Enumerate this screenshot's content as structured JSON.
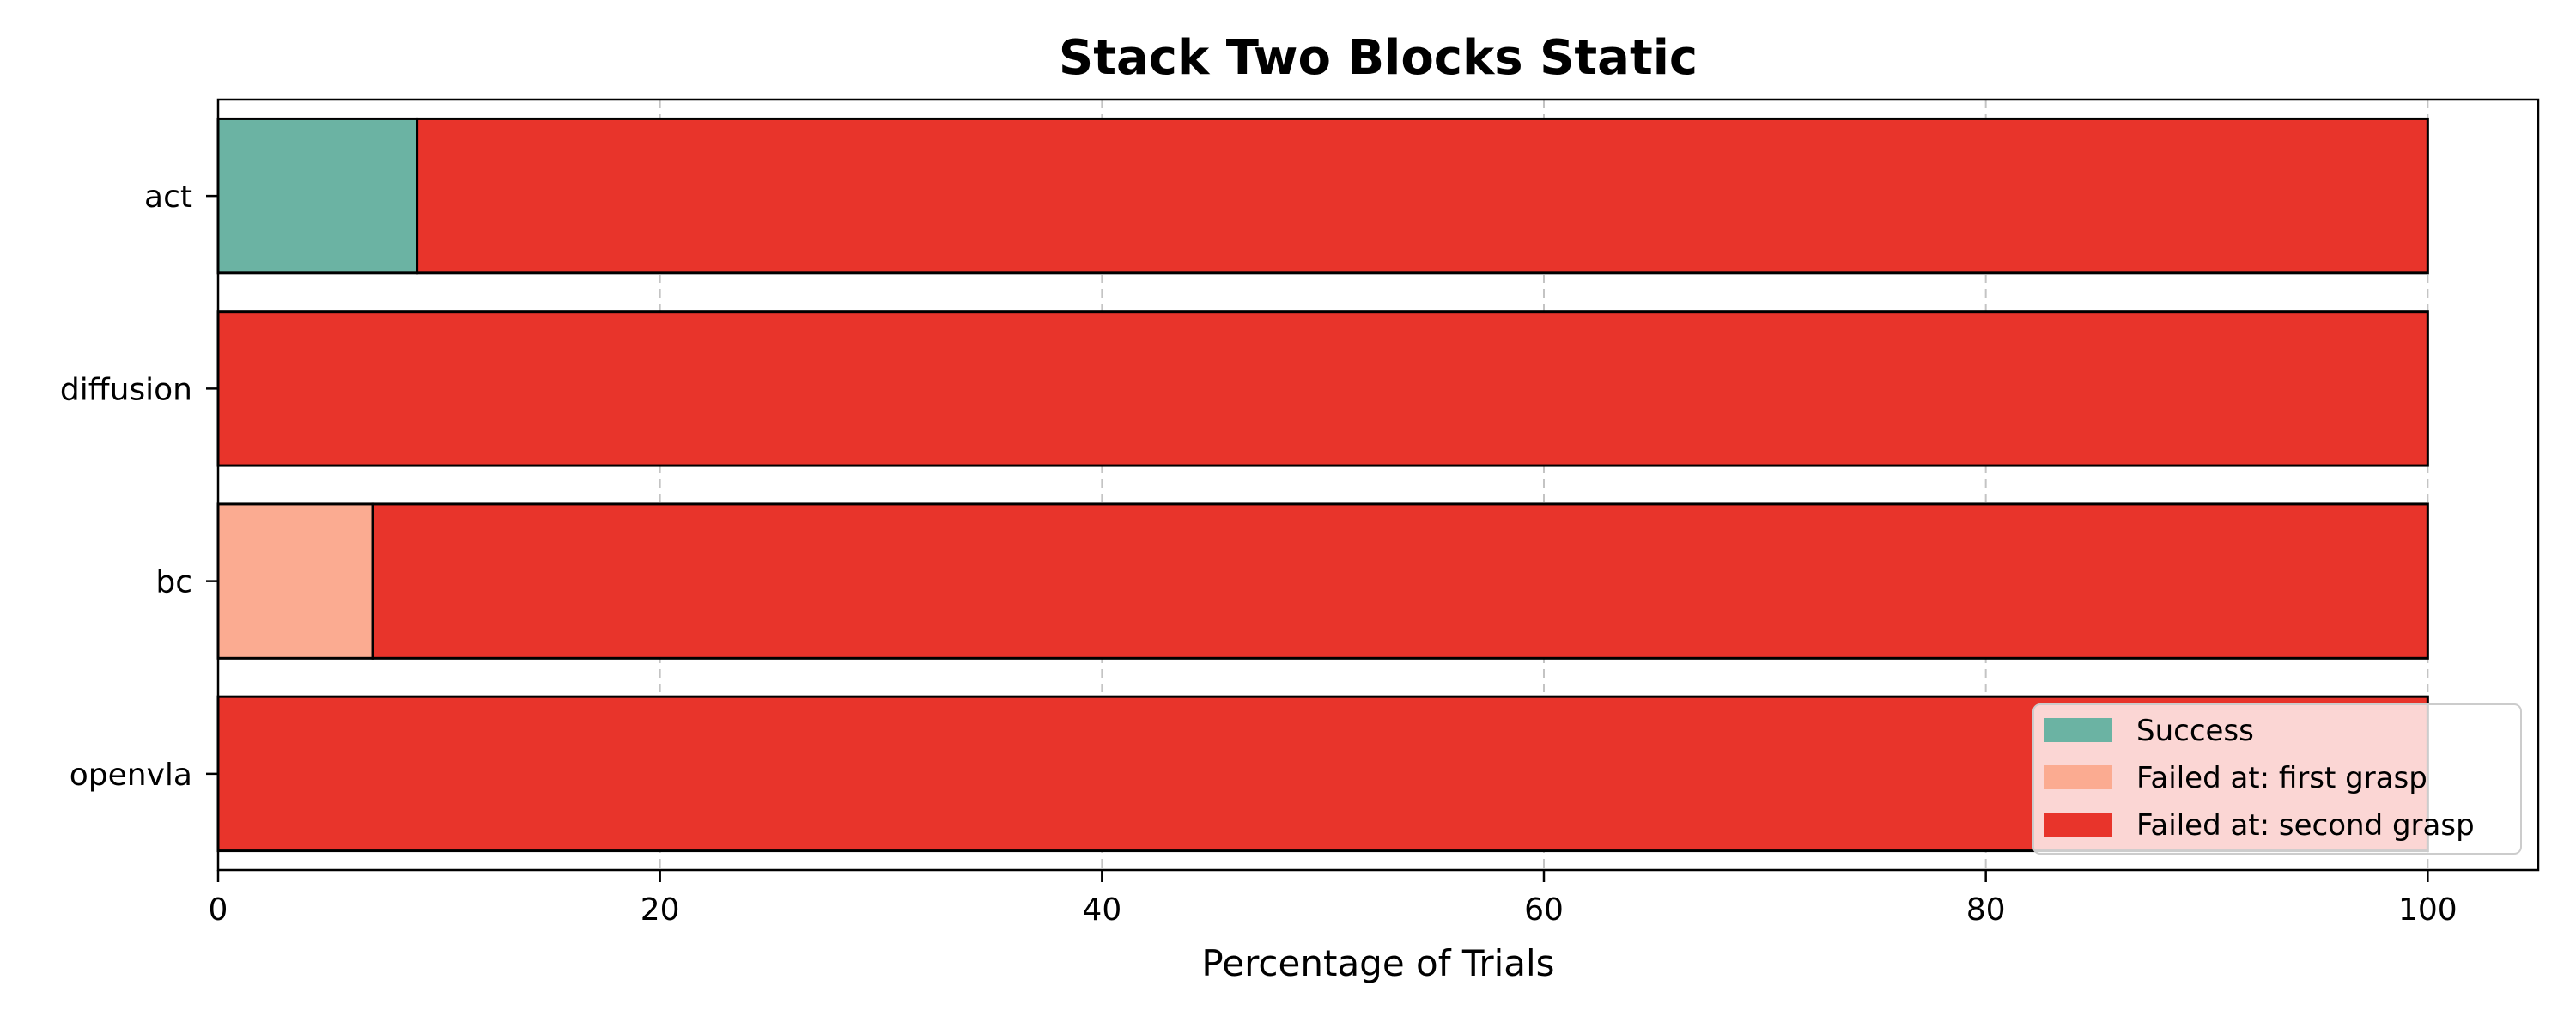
{
  "chart_data": {
    "type": "bar",
    "orientation": "horizontal",
    "stacked": true,
    "title": "Stack Two Blocks Static",
    "xlabel": "Percentage of Trials",
    "ylabel": "",
    "xlim": [
      0,
      105
    ],
    "xticks": [
      0,
      20,
      40,
      60,
      80,
      100
    ],
    "grid": "x, dashed",
    "legend_position": "lower-right",
    "categories": [
      "act",
      "diffusion",
      "bc",
      "openvla"
    ],
    "series": [
      {
        "name": "Success",
        "color": "#6bb3a3",
        "values": [
          9,
          0,
          0,
          0
        ]
      },
      {
        "name": "Failed at: first grasp",
        "color": "#fbab91",
        "values": [
          0,
          0,
          7,
          0
        ]
      },
      {
        "name": "Failed at: second grasp",
        "color": "#e8342b",
        "values": [
          91,
          100,
          93,
          100
        ]
      }
    ]
  }
}
